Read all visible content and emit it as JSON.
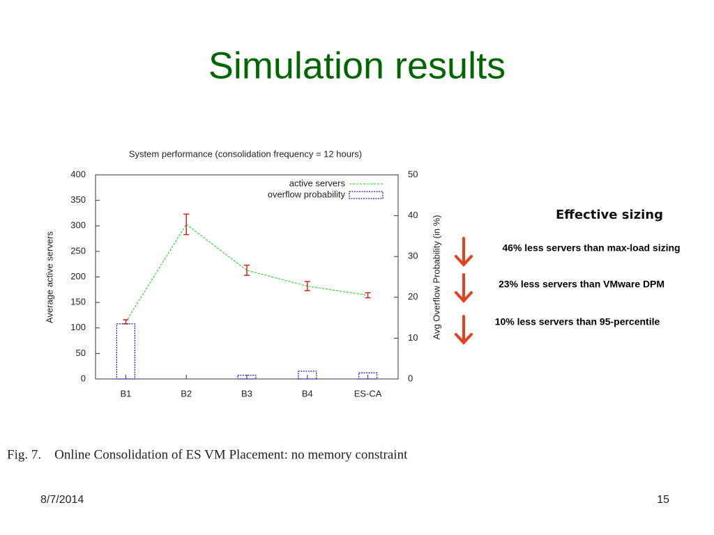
{
  "title": "Simulation results",
  "chart_data": {
    "type": "combo",
    "title": "System performance (consolidation frequency = 12 hours)",
    "categories": [
      "B1",
      "B2",
      "B3",
      "B4",
      "ES-CA"
    ],
    "ylabel": "Average active servers",
    "y2label": "Avg Overflow Probability (in %)",
    "ylim": [
      0,
      400
    ],
    "yticks": [
      0,
      50,
      100,
      150,
      200,
      250,
      300,
      350,
      400
    ],
    "y2lim": [
      0,
      50
    ],
    "y2ticks": [
      0,
      10,
      20,
      30,
      40,
      50
    ],
    "legend": "upper right",
    "series": [
      {
        "name": "active servers",
        "type": "line",
        "color": "#33dd33",
        "values": [
          112,
          303,
          213,
          182,
          164
        ],
        "errors": [
          4,
          20,
          10,
          9,
          5
        ],
        "error_color": "#dd2222"
      },
      {
        "name": "overflow probability",
        "type": "bar",
        "axis": "y2",
        "color": "#1a1acc",
        "values": [
          13.5,
          0,
          0.9,
          1.9,
          1.5
        ]
      }
    ]
  },
  "sidebar": {
    "heading": "Effective sizing",
    "items": [
      "46% less servers than max-load sizing",
      "23% less servers than VMware DPM",
      "10% less servers than 95-percentile"
    ]
  },
  "caption": "Fig. 7.    Online Consolidation of ES VM Placement: no memory constraint",
  "footer": {
    "date": "8/7/2014",
    "page": "15"
  }
}
